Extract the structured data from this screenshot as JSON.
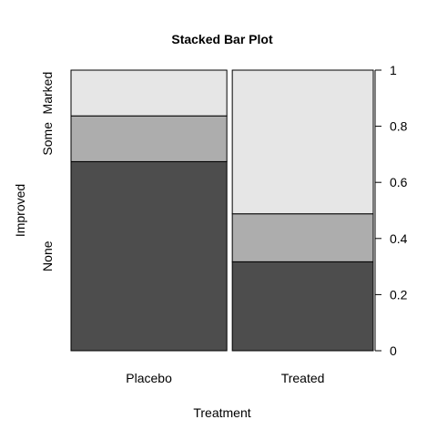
{
  "chart_data": {
    "type": "bar",
    "stacked": true,
    "title": "Stacked Bar Plot",
    "xlabel": "Treatment",
    "ylabel": "Improved",
    "categories": [
      "Placebo",
      "Treated"
    ],
    "series": [
      {
        "name": "None",
        "values": [
          0.674,
          0.317
        ],
        "color": "#4d4d4d"
      },
      {
        "name": "Some",
        "values": [
          0.163,
          0.171
        ],
        "color": "#adadad"
      },
      {
        "name": "Marked",
        "values": [
          0.163,
          0.512
        ],
        "color": "#e6e6e6"
      }
    ],
    "left_axis_labels": [
      "None",
      "Some",
      "Marked"
    ],
    "right_axis_ticks": [
      0,
      0.2,
      0.4,
      0.6,
      0.8,
      1
    ],
    "right_axis_tick_labels": [
      "0",
      "0.2",
      "0.4",
      "0.6",
      "0.8",
      "1"
    ],
    "ylim": [
      0,
      1
    ],
    "bar_width_fractions": [
      0.525,
      0.475
    ],
    "grid": false
  }
}
